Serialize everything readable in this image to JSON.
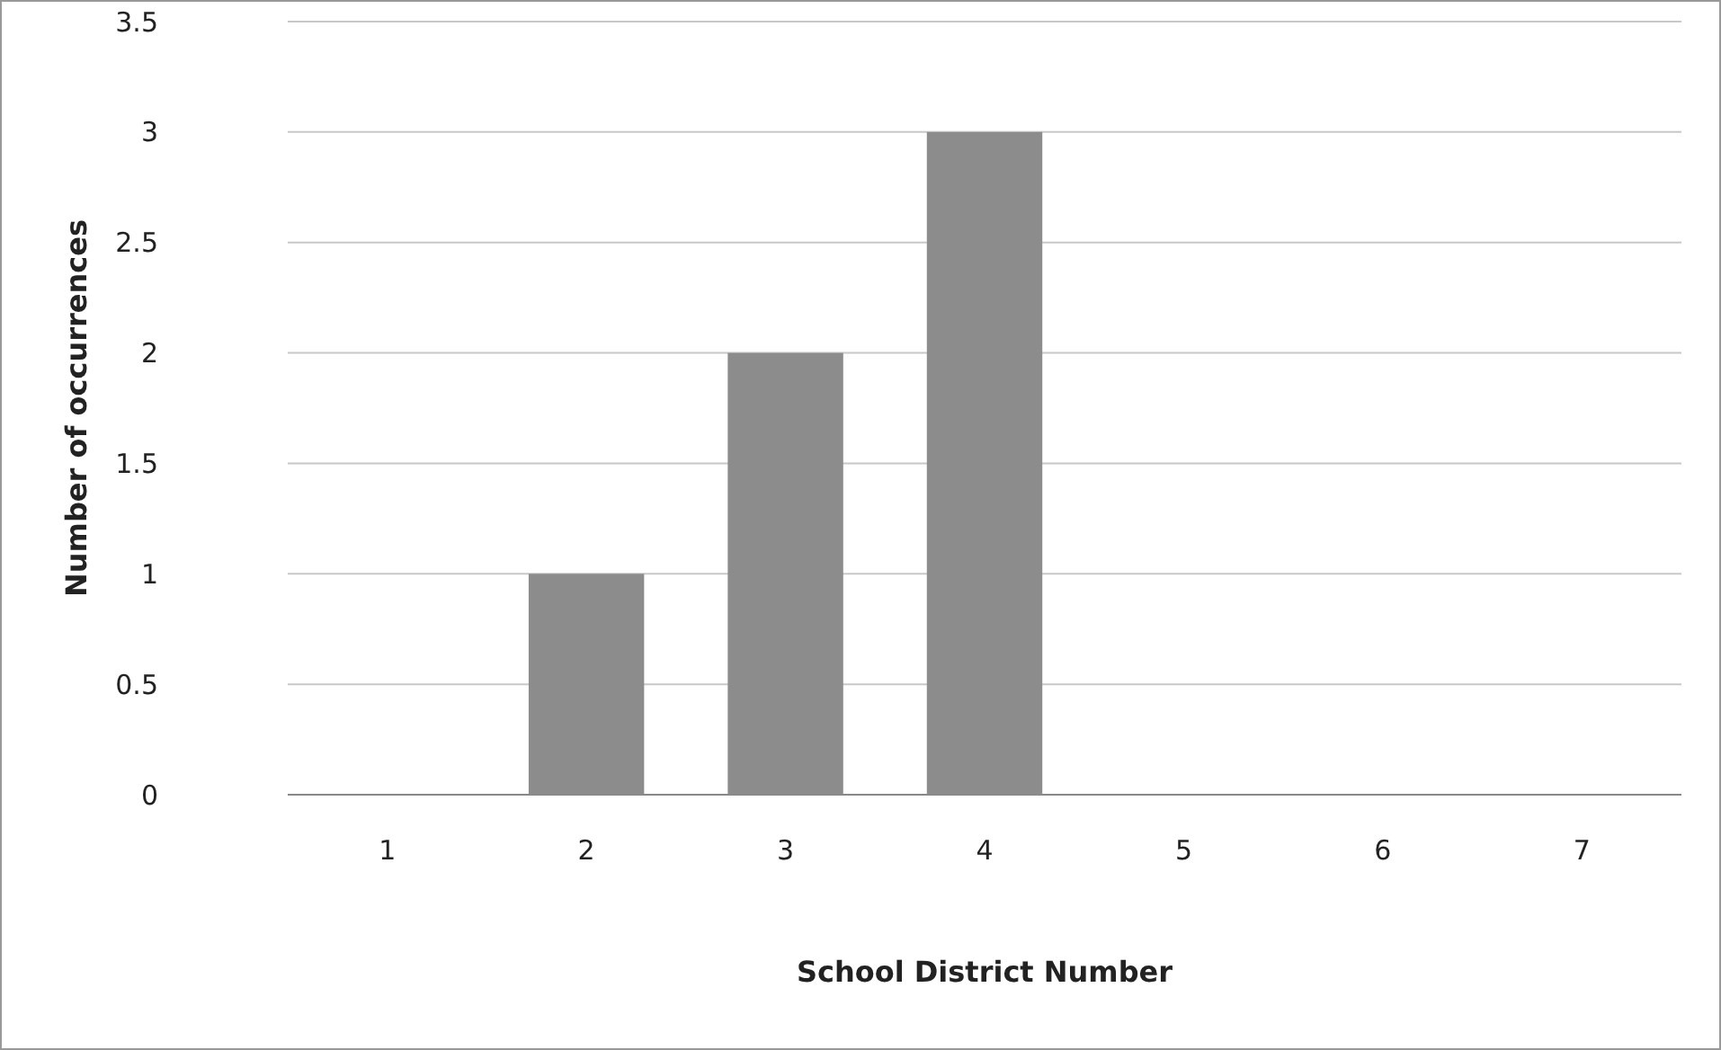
{
  "chart_data": {
    "type": "bar",
    "xlabel": "School District Number",
    "ylabel": "Number of occurrences",
    "categories": [
      "1",
      "2",
      "3",
      "4",
      "5",
      "6",
      "7"
    ],
    "values": [
      0,
      1,
      2,
      3,
      0,
      0,
      0
    ],
    "color": "#8c8c8c",
    "ylim": [
      0,
      3.5
    ],
    "yticks": [
      0,
      0.5,
      1,
      1.5,
      2,
      2.5,
      3,
      3.5
    ],
    "grid": "y"
  }
}
